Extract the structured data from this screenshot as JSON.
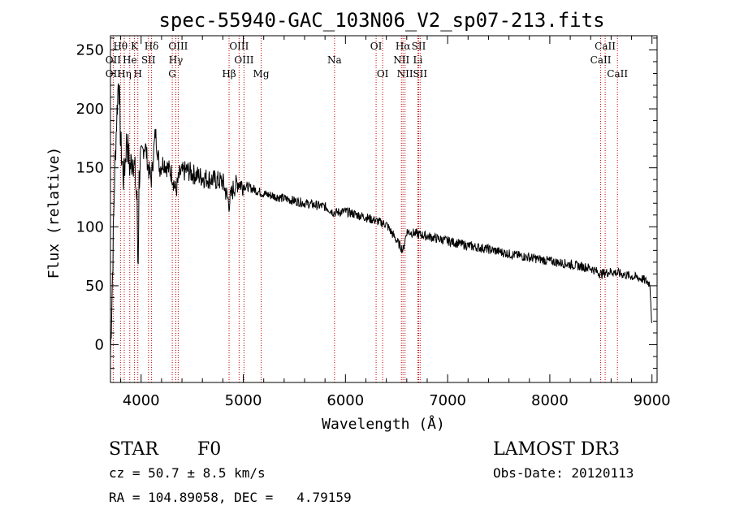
{
  "chart_data": {
    "type": "line",
    "title": "spec-55940-GAC_103N06_V2_sp07-213.fits",
    "xlabel": "Wavelength (Å)",
    "ylabel": "Flux (relative)",
    "xlim": [
      3700,
      9050
    ],
    "ylim": [
      -32,
      262
    ],
    "xticks": [
      4000,
      5000,
      6000,
      7000,
      8000,
      9000
    ],
    "yticks": [
      0,
      50,
      100,
      150,
      200,
      250
    ],
    "line_color": "#000000",
    "marker_color": "#c00000",
    "spectrum_points": [
      [
        3700,
        -10
      ],
      [
        3720,
        60
      ],
      [
        3740,
        140
      ],
      [
        3760,
        190
      ],
      [
        3780,
        230
      ],
      [
        3800,
        170
      ],
      [
        3830,
        140
      ],
      [
        3860,
        175
      ],
      [
        3890,
        150
      ],
      [
        3920,
        160
      ],
      [
        3940,
        145
      ],
      [
        3960,
        120
      ],
      [
        3970,
        60
      ],
      [
        3980,
        140
      ],
      [
        4000,
        160
      ],
      [
        4040,
        170
      ],
      [
        4070,
        150
      ],
      [
        4100,
        140
      ],
      [
        4140,
        180
      ],
      [
        4180,
        150
      ],
      [
        4220,
        155
      ],
      [
        4260,
        150
      ],
      [
        4300,
        145
      ],
      [
        4340,
        130
      ],
      [
        4380,
        145
      ],
      [
        4450,
        148
      ],
      [
        4500,
        145
      ],
      [
        4600,
        142
      ],
      [
        4700,
        140
      ],
      [
        4800,
        138
      ],
      [
        4861,
        120
      ],
      [
        4900,
        132
      ],
      [
        4950,
        138
      ],
      [
        5000,
        135
      ],
      [
        5100,
        132
      ],
      [
        5200,
        128
      ],
      [
        5400,
        124
      ],
      [
        5600,
        120
      ],
      [
        5800,
        117
      ],
      [
        5890,
        112
      ],
      [
        6000,
        113
      ],
      [
        6200,
        108
      ],
      [
        6400,
        102
      ],
      [
        6563,
        80
      ],
      [
        6600,
        96
      ],
      [
        6800,
        92
      ],
      [
        7000,
        88
      ],
      [
        7200,
        84
      ],
      [
        7400,
        81
      ],
      [
        7600,
        77
      ],
      [
        7800,
        74
      ],
      [
        8000,
        71
      ],
      [
        8200,
        68
      ],
      [
        8400,
        65
      ],
      [
        8500,
        60
      ],
      [
        8600,
        62
      ],
      [
        8700,
        60
      ],
      [
        8800,
        58
      ],
      [
        8900,
        56
      ],
      [
        8980,
        52
      ],
      [
        9000,
        15
      ]
    ],
    "lines": [
      {
        "name": "Hθ",
        "wave": 3798,
        "row": 0
      },
      {
        "name": "K",
        "wave": 3934,
        "row": 0
      },
      {
        "name": "Hδ",
        "wave": 4102,
        "row": 0
      },
      {
        "name": "OIII",
        "wave": 4363,
        "row": 0
      },
      {
        "name": "OIII",
        "wave": 4959,
        "row": 0
      },
      {
        "name": "OI",
        "wave": 6300,
        "row": 0
      },
      {
        "name": "Hα",
        "wave": 6563,
        "row": 0
      },
      {
        "name": "SII",
        "wave": 6717,
        "row": 0
      },
      {
        "name": "CaII",
        "wave": 8542,
        "row": 0
      },
      {
        "name": "OII",
        "wave": 3727,
        "row": 1
      },
      {
        "name": "He",
        "wave": 3889,
        "row": 1
      },
      {
        "name": "SII",
        "wave": 4072,
        "row": 1
      },
      {
        "name": "Hγ",
        "wave": 4340,
        "row": 1
      },
      {
        "name": "OIII",
        "wave": 5007,
        "row": 1
      },
      {
        "name": "Na",
        "wave": 5893,
        "row": 1
      },
      {
        "name": "NII",
        "wave": 6548,
        "row": 1
      },
      {
        "name": "Li",
        "wave": 6708,
        "row": 1
      },
      {
        "name": "CaII",
        "wave": 8498,
        "row": 1
      },
      {
        "name": "OII",
        "wave": 3727,
        "row": 2
      },
      {
        "name": "Hη",
        "wave": 3835,
        "row": 2
      },
      {
        "name": "H",
        "wave": 3968,
        "row": 2
      },
      {
        "name": "G",
        "wave": 4305,
        "row": 2
      },
      {
        "name": "Hβ",
        "wave": 4861,
        "row": 2
      },
      {
        "name": "Mg",
        "wave": 5175,
        "row": 2
      },
      {
        "name": "OI",
        "wave": 6364,
        "row": 2
      },
      {
        "name": "NII",
        "wave": 6583,
        "row": 2
      },
      {
        "name": "SII",
        "wave": 6731,
        "row": 2
      },
      {
        "name": "CaII",
        "wave": 8662,
        "row": 2
      }
    ]
  },
  "footer": {
    "object_class": "STAR",
    "subclass": "F0",
    "survey": "LAMOST DR3",
    "cz": "cz = 50.7 ± 8.5 km/s",
    "obs_date": "Obs-Date: 20120113",
    "coords": "RA = 104.89058, DEC =   4.79159"
  }
}
